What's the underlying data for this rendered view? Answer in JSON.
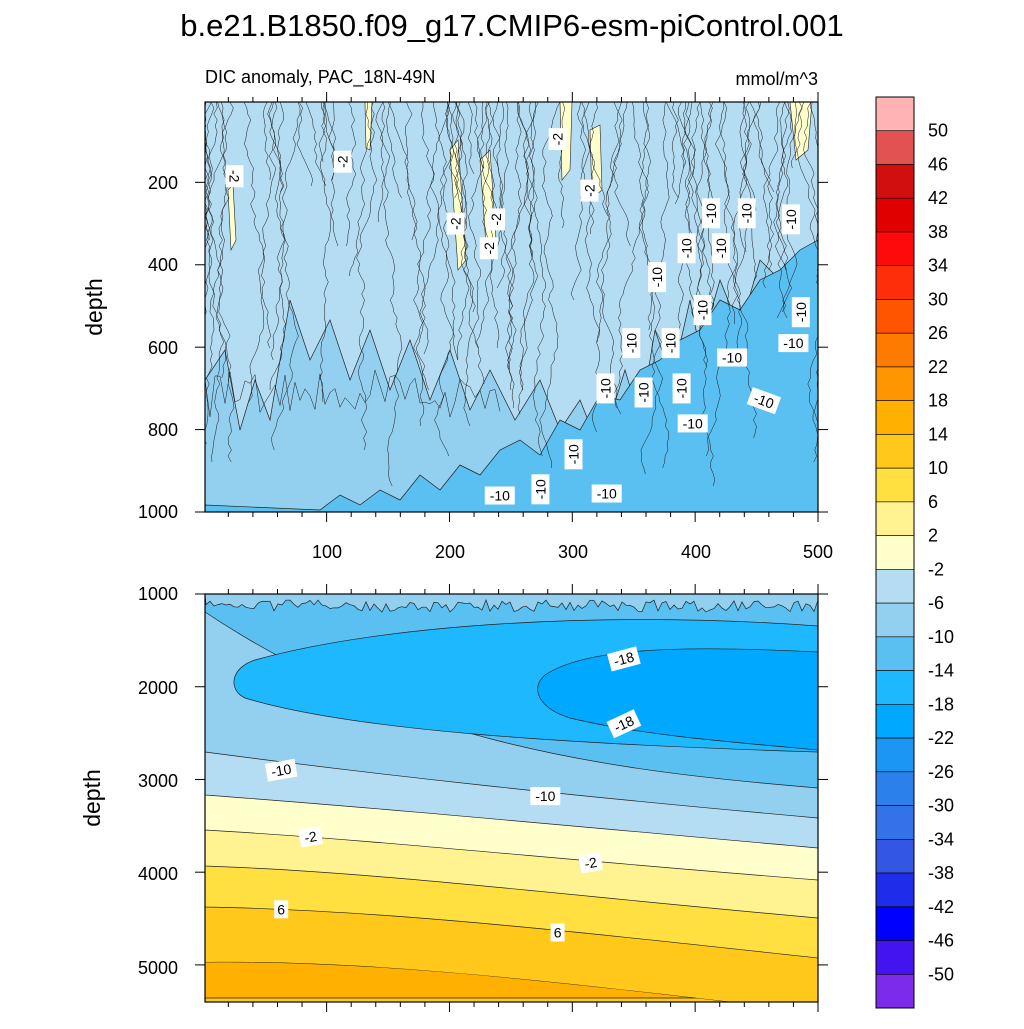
{
  "title": "b.e21.B1850.f09_g17.CMIP6-esm-piControl.001",
  "chart_data": [
    {
      "type": "contour",
      "panel": "upper",
      "subtitle_left": "DIC anomaly, PAC_18N-49N",
      "subtitle_right": "mmol/m^3",
      "ylabel": "depth",
      "xlabel": "",
      "xlim": [
        1,
        500
      ],
      "ylim": [
        1000,
        5
      ],
      "x_ticks": [
        "100",
        "200",
        "300",
        "400",
        "500"
      ],
      "y_ticks": [
        "200",
        "400",
        "600",
        "800",
        "1000"
      ],
      "contour_labels": [
        {
          "text": "-2",
          "x": 25,
          "y": 185,
          "rot": 90
        },
        {
          "text": "-2",
          "x": 113,
          "y": 150,
          "rot": -90
        },
        {
          "text": "-2",
          "x": 288,
          "y": 95,
          "rot": -90
        },
        {
          "text": "-2",
          "x": 314,
          "y": 220,
          "rot": -90
        },
        {
          "text": "-2",
          "x": 205,
          "y": 300,
          "rot": -90
        },
        {
          "text": "-2",
          "x": 238,
          "y": 290,
          "rot": -90
        },
        {
          "text": "-2",
          "x": 232,
          "y": 360,
          "rot": -90
        },
        {
          "text": "-10",
          "x": 413,
          "y": 275,
          "rot": -90
        },
        {
          "text": "-10",
          "x": 442,
          "y": 275,
          "rot": -90
        },
        {
          "text": "-10",
          "x": 478,
          "y": 290,
          "rot": -90
        },
        {
          "text": "-10",
          "x": 393,
          "y": 360,
          "rot": -90
        },
        {
          "text": "-10",
          "x": 421,
          "y": 360,
          "rot": -90
        },
        {
          "text": "-10",
          "x": 369,
          "y": 430,
          "rot": -90
        },
        {
          "text": "-10",
          "x": 406,
          "y": 510,
          "rot": -90
        },
        {
          "text": "-10",
          "x": 486,
          "y": 515,
          "rot": -90
        },
        {
          "text": "-10",
          "x": 348,
          "y": 590,
          "rot": -90
        },
        {
          "text": "-10",
          "x": 380,
          "y": 590,
          "rot": -90
        },
        {
          "text": "-10",
          "x": 430,
          "y": 625,
          "rot": 0
        },
        {
          "text": "-10",
          "x": 480,
          "y": 590,
          "rot": 0
        },
        {
          "text": "-10",
          "x": 327,
          "y": 700,
          "rot": -90
        },
        {
          "text": "-10",
          "x": 358,
          "y": 710,
          "rot": -90
        },
        {
          "text": "-10",
          "x": 389,
          "y": 700,
          "rot": -90
        },
        {
          "text": "-10",
          "x": 456,
          "y": 730,
          "rot": 20
        },
        {
          "text": "-10",
          "x": 398,
          "y": 785,
          "rot": 0
        },
        {
          "text": "-10",
          "x": 301,
          "y": 860,
          "rot": -90
        },
        {
          "text": "-10",
          "x": 274,
          "y": 945,
          "rot": -90
        },
        {
          "text": "-10",
          "x": 241,
          "y": 960,
          "rot": 0
        },
        {
          "text": "-10",
          "x": 328,
          "y": 955,
          "rot": 0
        }
      ]
    },
    {
      "type": "contour",
      "panel": "lower",
      "ylabel": "depth",
      "xlabel": "",
      "xlim": [
        1,
        500
      ],
      "ylim": [
        5400,
        1000
      ],
      "y_ticks": [
        "1000",
        "2000",
        "3000",
        "4000",
        "5000"
      ],
      "contour_labels": [
        {
          "text": "-18",
          "x": 342,
          "y": 1700,
          "rot": -15
        },
        {
          "text": "-18",
          "x": 342,
          "y": 2400,
          "rot": -25
        },
        {
          "text": "-10",
          "x": 63,
          "y": 2900,
          "rot": -10
        },
        {
          "text": "-10",
          "x": 278,
          "y": 3180,
          "rot": 0
        },
        {
          "text": "-2",
          "x": 87,
          "y": 3620,
          "rot": -10
        },
        {
          "text": "-2",
          "x": 315,
          "y": 3900,
          "rot": -10
        },
        {
          "text": "6",
          "x": 63,
          "y": 4400,
          "rot": 0
        },
        {
          "text": "6",
          "x": 288,
          "y": 4650,
          "rot": 0
        }
      ]
    }
  ],
  "colorbar": {
    "labels": [
      "50",
      "46",
      "42",
      "38",
      "34",
      "30",
      "26",
      "22",
      "18",
      "14",
      "10",
      "6",
      "2",
      "-2",
      "-6",
      "-10",
      "-14",
      "-18",
      "-22",
      "-26",
      "-30",
      "-34",
      "-38",
      "-42",
      "-46",
      "-50"
    ],
    "colors": [
      "#ffb3b3",
      "#e35252",
      "#d10f0f",
      "#e00000",
      "#ff0a0a",
      "#ff2e0a",
      "#ff5500",
      "#ff7a00",
      "#ff9500",
      "#ffb000",
      "#ffc81a",
      "#ffe040",
      "#fff291",
      "#ffffcc",
      "#b4dcf3",
      "#93cfef",
      "#5ac0f2",
      "#1eb8ff",
      "#00a8ff",
      "#1c96f5",
      "#2b80ec",
      "#3372e9",
      "#3356e3",
      "#1e2dea",
      "#0000ff",
      "#4314f0",
      "#7d2bea"
    ]
  }
}
